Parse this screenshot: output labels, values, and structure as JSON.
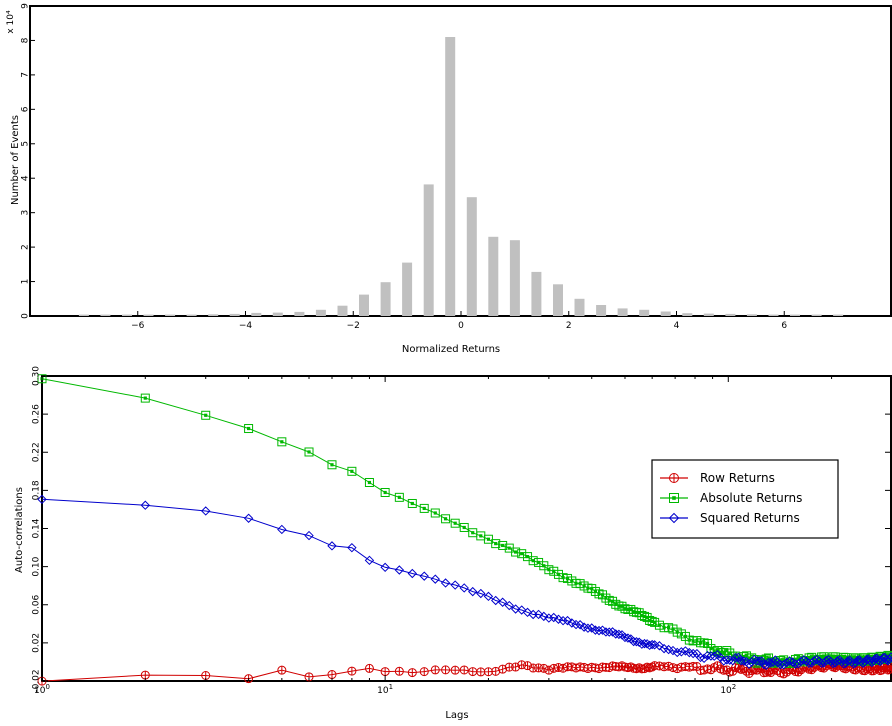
{
  "chart_data": [
    {
      "type": "bar",
      "title": "",
      "xlabel": "Normalized Returns",
      "ylabel": "Number of Events",
      "y_multiplier_label": "x 10⁴",
      "xlim": [
        -8,
        8
      ],
      "ylim": [
        0,
        9
      ],
      "xticks": [
        -6,
        -4,
        -2,
        0,
        2,
        4,
        6
      ],
      "yticks": [
        0,
        1,
        2,
        3,
        4,
        5,
        6,
        7,
        8,
        9
      ],
      "x": [
        -7,
        -6.6,
        -6.2,
        -5.8,
        -5.4,
        -5,
        -4.6,
        -4.2,
        -3.8,
        -3.4,
        -3,
        -2.6,
        -2.2,
        -1.8,
        -1.4,
        -1,
        -0.6,
        -0.2,
        0.2,
        0.6,
        1,
        1.4,
        1.8,
        2.2,
        2.6,
        3,
        3.4,
        3.8,
        4.2,
        4.6,
        5,
        5.4,
        5.8,
        6.2,
        6.6,
        7
      ],
      "values_x10e4": [
        0.04,
        0.04,
        0.04,
        0.04,
        0.04,
        0.04,
        0.05,
        0.06,
        0.09,
        0.1,
        0.12,
        0.18,
        0.3,
        0.62,
        0.98,
        1.55,
        3.82,
        8.1,
        3.45,
        2.3,
        2.2,
        1.28,
        0.92,
        0.5,
        0.32,
        0.22,
        0.18,
        0.13,
        0.08,
        0.07,
        0.06,
        0.05,
        0.04,
        0.04,
        0.04,
        0.04
      ],
      "bar_color": "#c0c0c0"
    },
    {
      "type": "line",
      "title": "",
      "xlabel": "Lags",
      "ylabel": "Auto-correlations",
      "x_scale": "log",
      "xlim": [
        1,
        300
      ],
      "ylim": [
        -0.02,
        0.3
      ],
      "xticks": [
        {
          "value": 1,
          "label_base": "10",
          "label_exp": "0"
        },
        {
          "value": 10,
          "label_base": "10",
          "label_exp": "1"
        },
        {
          "value": 100,
          "label_base": "10",
          "label_exp": "2"
        }
      ],
      "yticks": [
        "-0.02",
        "0.02",
        "0.06",
        "0.10",
        "0.14",
        "0.18",
        "0.22",
        "0.26",
        "0.30"
      ],
      "ytick_values": [
        -0.02,
        0.02,
        0.06,
        0.1,
        0.14,
        0.18,
        0.22,
        0.26,
        0.3
      ],
      "legend": "right",
      "series": [
        {
          "name": "Row Returns",
          "color": "#d00000",
          "marker": "circle",
          "lags": [
            1,
            2,
            3,
            4,
            5,
            6,
            7,
            8,
            9,
            10,
            12,
            15,
            20,
            25,
            30,
            40,
            50,
            70,
            100,
            150,
            200,
            300
          ],
          "values": [
            -0.02,
            -0.015,
            -0.015,
            -0.018,
            -0.01,
            -0.016,
            -0.013,
            -0.01,
            -0.006,
            -0.009,
            -0.01,
            -0.008,
            -0.012,
            -0.002,
            -0.008,
            -0.005,
            -0.006,
            -0.005,
            -0.008,
            -0.01,
            -0.005,
            -0.007
          ]
        },
        {
          "name": "Absolute Returns",
          "color": "#00b800",
          "marker": "square",
          "lags": [
            1,
            2,
            3,
            4,
            5,
            6,
            7,
            8,
            9,
            10,
            12,
            15,
            20,
            25,
            30,
            40,
            50,
            60,
            70,
            80,
            100,
            120,
            150,
            200,
            250,
            300
          ],
          "values": [
            0.298,
            0.277,
            0.26,
            0.246,
            0.231,
            0.221,
            0.207,
            0.199,
            0.188,
            0.177,
            0.166,
            0.151,
            0.129,
            0.112,
            0.098,
            0.075,
            0.057,
            0.043,
            0.032,
            0.022,
            0.008,
            0.002,
            0.0,
            0.003,
            0.004,
            0.004
          ]
        },
        {
          "name": "Squared Returns",
          "color": "#0000cc",
          "marker": "diamond",
          "lags": [
            1,
            2,
            3,
            4,
            5,
            6,
            7,
            8,
            9,
            10,
            12,
            15,
            20,
            25,
            30,
            40,
            50,
            60,
            70,
            80,
            100,
            120,
            150,
            200,
            250,
            300
          ],
          "values": [
            0.17,
            0.163,
            0.158,
            0.15,
            0.138,
            0.133,
            0.122,
            0.12,
            0.108,
            0.1,
            0.094,
            0.083,
            0.068,
            0.055,
            0.046,
            0.036,
            0.026,
            0.017,
            0.012,
            0.008,
            0.003,
            0.0,
            -0.002,
            0.0,
            0.002,
            0.002
          ]
        }
      ]
    }
  ]
}
